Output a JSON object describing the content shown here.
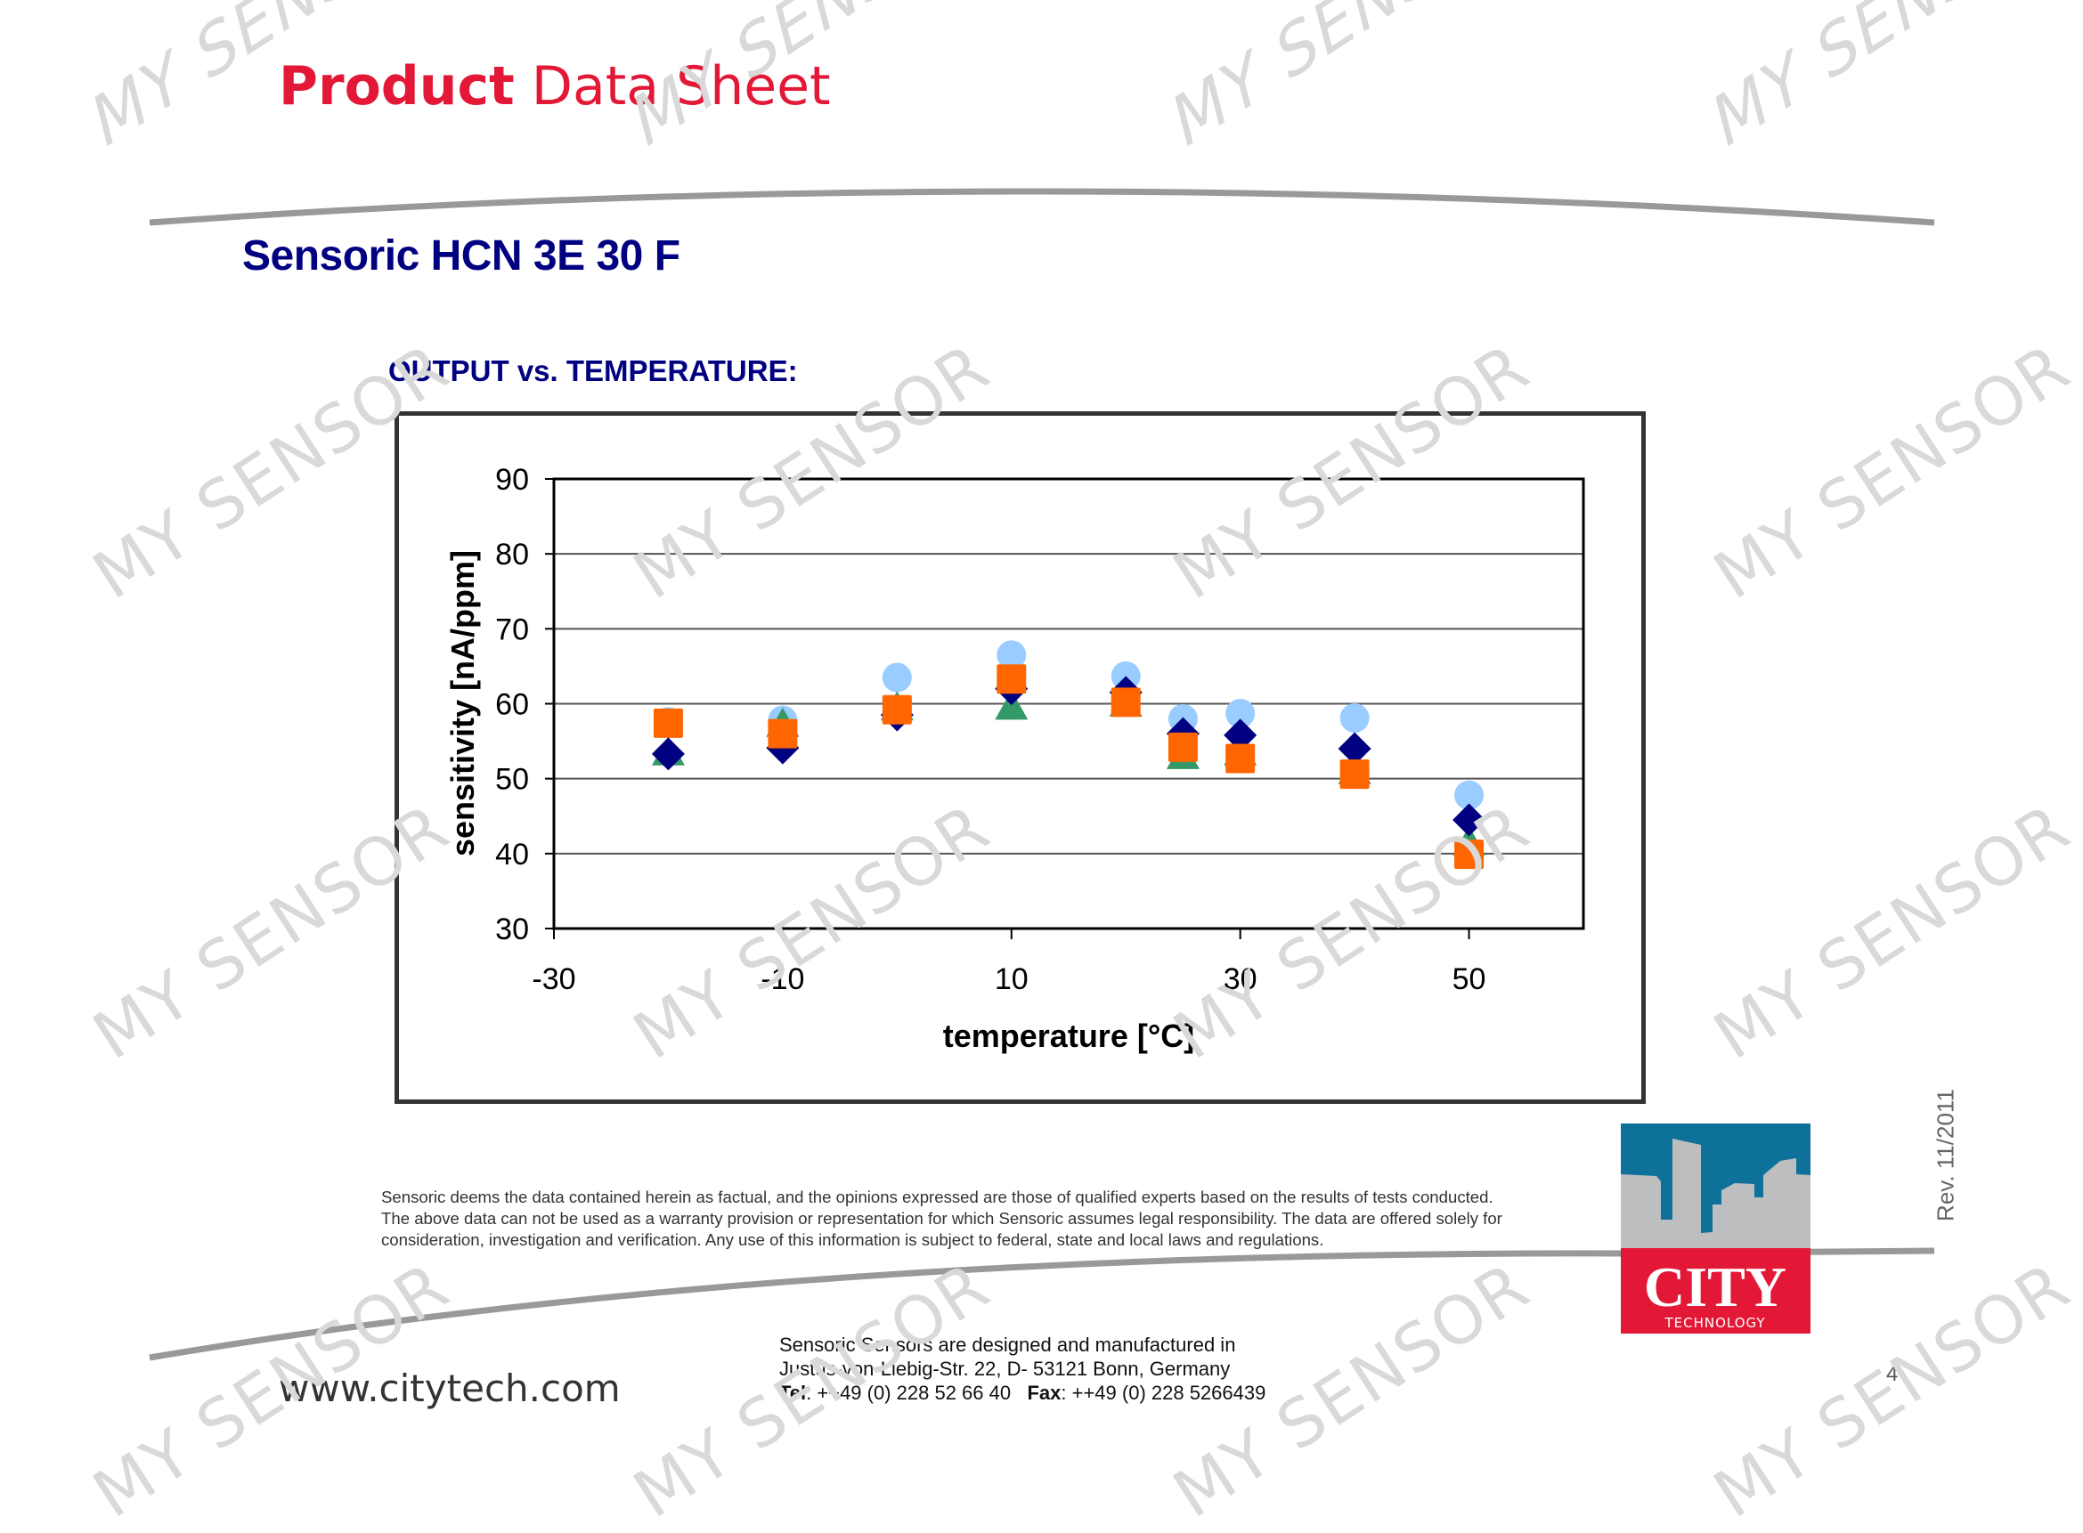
{
  "header": {
    "brand_bold": "Product",
    "brand_light": "Data Sheet",
    "brand_color": "#e31837"
  },
  "product": {
    "name": "Sensoric HCN 3E 30 F",
    "color": "#000080"
  },
  "section": {
    "title": "OUTPUT vs. TEMPERATURE:"
  },
  "chart_data": {
    "type": "scatter",
    "title": "OUTPUT vs. TEMPERATURE:",
    "xlabel": "temperature [°C]",
    "ylabel": "sensitivity [nA/ppm]",
    "xlim": [
      -30,
      60
    ],
    "ylim": [
      30,
      90
    ],
    "x_ticks": [
      -30,
      -10,
      10,
      30,
      50
    ],
    "y_ticks": [
      30,
      40,
      50,
      60,
      70,
      80,
      90
    ],
    "grid": "horizontal major gridlines",
    "legend": "none",
    "x": [
      -20,
      -10,
      0,
      10,
      20,
      25,
      30,
      40,
      50
    ],
    "series": [
      {
        "name": "sensor 1 (light blue circle)",
        "marker": "circle",
        "color": "#99ccff",
        "values": [
          57.6,
          57.8,
          63.5,
          66.5,
          63.7,
          58.0,
          58.7,
          58.1,
          47.8
        ]
      },
      {
        "name": "sensor 2 (green triangle)",
        "marker": "triangle",
        "color": "#339966",
        "values": [
          53.5,
          57.3,
          59.5,
          59.6,
          60.0,
          53.0,
          53.5,
          51.0,
          41.5
        ]
      },
      {
        "name": "sensor 3 (navy diamond)",
        "marker": "diamond",
        "color": "#000080",
        "values": [
          53.3,
          54.1,
          58.5,
          62.0,
          61.5,
          56.0,
          55.8,
          54.0,
          44.5
        ]
      },
      {
        "name": "sensor 4 (orange square)",
        "marker": "square",
        "color": "#ff6600",
        "values": [
          57.4,
          56.0,
          59.2,
          63.3,
          60.2,
          54.2,
          52.7,
          50.6,
          39.9
        ]
      }
    ]
  },
  "disclaimer": {
    "line1": "Sensoric deems the data contained herein as factual, and the opinions expressed are those of qualified experts based on the results of tests conducted.",
    "line2": "The above data can not be used as a warranty provision or representation for which Sensoric assumes legal responsibility. The data are offered solely for",
    "line3": "consideration, investigation and verification. Any use of this information is subject to federal, state and local laws and regulations."
  },
  "footer": {
    "website": "www.citytech.com",
    "address_line1": "Sensoric Sensors are designed and manufactured in",
    "address_line2": "Justus-von-Liebig-Str. 22, D- 53121 Bonn, Germany",
    "tel_label": "Tel",
    "tel_value": ": ++49 (0) 228 52 66 40",
    "fax_label": "Fax",
    "fax_value": ": ++49 (0) 228 5266439",
    "page_number": "4",
    "revision": "Rev.  11/2011"
  },
  "logo": {
    "word": "CITY",
    "subword": "TECHNOLOGY",
    "sky_color": "#0e7199",
    "building_color": "#bcbec0",
    "red_color": "#e31837"
  },
  "watermark": {
    "text": "MY SENSOR"
  }
}
